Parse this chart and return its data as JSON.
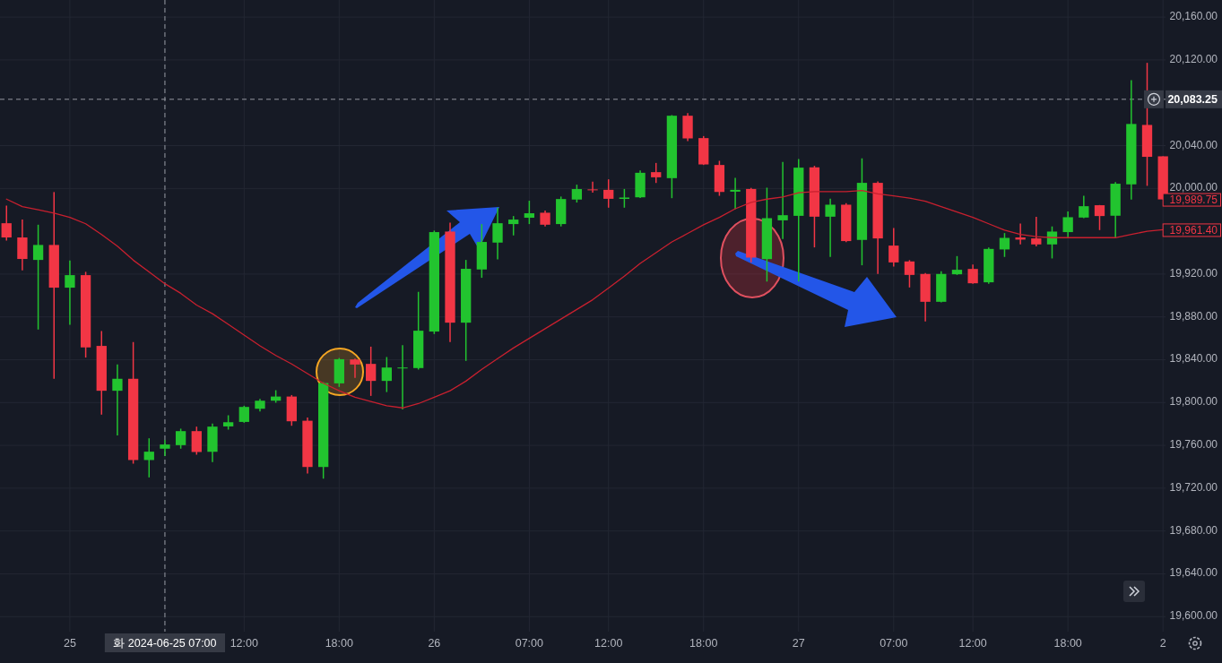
{
  "chart_data": {
    "type": "candlestick",
    "categories": [
      null,
      null,
      null,
      null,
      "25",
      null,
      null,
      null,
      null,
      null,
      "화 2024-06-25 07:00",
      null,
      null,
      null,
      null,
      "12:00",
      null,
      null,
      null,
      null,
      null,
      "18:00",
      null,
      null,
      null,
      null,
      null,
      "26",
      null,
      null,
      null,
      null,
      null,
      "07:00",
      null,
      null,
      null,
      null,
      "12:00",
      null,
      null,
      null,
      null,
      null,
      "18:00",
      null,
      null,
      null,
      null,
      null,
      "27",
      null,
      null,
      null,
      null,
      null,
      "07:00",
      null,
      null,
      null,
      null,
      "12:00",
      null,
      null,
      null,
      null,
      null,
      "18:00",
      null,
      null,
      null,
      null,
      null,
      "2"
    ],
    "series": [
      {
        "type": "line",
        "color": "#c8202f",
        "values": [
          19990,
          19983,
          19980,
          19977,
          19973,
          19967,
          19957,
          19946,
          19933,
          19922,
          19911,
          19902,
          19891,
          19883,
          19873,
          19863,
          19853,
          19844,
          19836,
          19827,
          19818,
          19811,
          19805,
          19801,
          19797,
          19795,
          19799,
          19805,
          19811,
          19820,
          19831,
          19841,
          19851,
          19860,
          19869,
          19878,
          19887,
          19896,
          19907,
          19918,
          19930,
          19940,
          19950,
          19958,
          19966,
          19973,
          19981,
          19987,
          19990,
          19992,
          19996,
          19997,
          19997,
          19997,
          19998,
          19995,
          19993,
          19991,
          19988,
          19983,
          19978,
          19973,
          19967,
          19961,
          19957,
          19955,
          19954,
          19954,
          19954,
          19954,
          19954,
          19957,
          19960,
          19961.4
        ]
      },
      {
        "colors": [
          "#f23645",
          "#f23645",
          "#22c42f",
          "#f23645",
          "#22c42f",
          "#f23645",
          "#f23645",
          "#22c42f",
          "#f23645",
          "#22c42f",
          "#22c42f",
          "#22c42f",
          "#f23645",
          "#22c42f",
          "#22c42f",
          "#22c42f",
          "#22c42f",
          "#22c42f",
          "#f23645",
          "#f23645",
          "#22c42f",
          "#22c42f",
          "#f23645",
          "#f23645",
          "#22c42f",
          "#22c42f",
          "#22c42f",
          "#22c42f",
          "#f23645",
          "#22c42f",
          "#22c42f",
          "#22c42f",
          "#22c42f",
          "#22c42f",
          "#f23645",
          "#22c42f",
          "#22c42f",
          "#f23645",
          "#f23645",
          "#22c42f",
          "#22c42f",
          "#f23645",
          "#22c42f",
          "#f23645",
          "#f23645",
          "#f23645",
          "#22c42f",
          "#f23645",
          "#22c42f",
          "#22c42f",
          "#22c42f",
          "#f23645",
          "#22c42f",
          "#f23645",
          "#22c42f",
          "#f23645",
          "#f23645",
          "#f23645",
          "#f23645",
          "#22c42f",
          "#22c42f",
          "#f23645",
          "#22c42f",
          "#22c42f",
          "#f23645",
          "#f23645",
          "#22c42f",
          "#22c42f",
          "#22c42f",
          "#f23645",
          "#22c42f",
          "#22c42f",
          "#f23645",
          "#f23645"
        ],
        "ohlc": [
          [
            19967.5,
            19984.0,
            19951.4,
            19954.2
          ],
          [
            19954.2,
            19970.9,
            19923.5,
            19934.1
          ],
          [
            19933.2,
            19966.1,
            19868.2,
            19947.2
          ],
          [
            19947.2,
            19996.6,
            19822.2,
            19907.3
          ],
          [
            19907.3,
            19932.7,
            19872.7,
            19919.0
          ],
          [
            19919.0,
            19922.1,
            19842.0,
            19851.5
          ],
          [
            19852.9,
            19866.8,
            19788.7,
            19811.0
          ],
          [
            19811.0,
            19835.6,
            19769.2,
            19822.2
          ],
          [
            19822.2,
            19856.5,
            19742.9,
            19746.3
          ],
          [
            19746.3,
            19766.6,
            19730.1,
            19754.1
          ],
          [
            19756.9,
            19765.0,
            19750.0,
            19760.8
          ],
          [
            19760.2,
            19775.6,
            19756.9,
            19773.3
          ],
          [
            19773.3,
            19777.5,
            19751.3,
            19753.8
          ],
          [
            19754.0,
            19780.3,
            19744.3,
            19777.5
          ],
          [
            19777.7,
            19788.1,
            19774.7,
            19781.6
          ],
          [
            19781.9,
            19797.0,
            19781.1,
            19795.9
          ],
          [
            19794.2,
            19803.4,
            19791.7,
            19801.7
          ],
          [
            19801.7,
            19811.5,
            19799.8,
            19805.6
          ],
          [
            19805.6,
            19807.0,
            19778.3,
            19782.5
          ],
          [
            19783.0,
            19786.1,
            19733.7,
            19739.8
          ],
          [
            19739.8,
            19819.0,
            19728.9,
            19818.2
          ],
          [
            19817.9,
            19841.6,
            19814.6,
            19840.5
          ],
          [
            19840.2,
            19841.0,
            19823.0,
            19835.5
          ],
          [
            19836.1,
            19852.2,
            19806.2,
            19820.2
          ],
          [
            19820.2,
            19842.5,
            19809.8,
            19832.7
          ],
          [
            19832.2,
            19853.6,
            19793.6,
            19832.7
          ],
          [
            19832.2,
            19903.4,
            19830.8,
            19867.1
          ],
          [
            19866.3,
            19960.6,
            19864.0,
            19959.2
          ],
          [
            19959.7,
            19968.1,
            19856.5,
            19874.6
          ],
          [
            19874.6,
            19933.2,
            19838.9,
            19924.9
          ],
          [
            19924.3,
            19966.7,
            19916.5,
            19950.0
          ],
          [
            19949.4,
            19982.1,
            19933.8,
            19967.5
          ],
          [
            19966.7,
            19974.2,
            19956.1,
            19970.9
          ],
          [
            19972.6,
            19988.5,
            19966.7,
            19976.8
          ],
          [
            19977.3,
            19979.3,
            19964.5,
            19966.1
          ],
          [
            19966.7,
            19992.4,
            19964.5,
            19990.1
          ],
          [
            19989.6,
            20003.5,
            19986.8,
            19999.4
          ],
          [
            19999.1,
            20006.3,
            19996.0,
            19998.5
          ],
          [
            19998.7,
            20008.5,
            19982.0,
            19990.3
          ],
          [
            19990.2,
            19999.5,
            19982.0,
            19991.5
          ],
          [
            19991.7,
            20016.8,
            19991.0,
            20014.6
          ],
          [
            20015.2,
            20023.8,
            20005.1,
            20010.4
          ],
          [
            20009.6,
            20068.5,
            19990.9,
            20067.9
          ],
          [
            20067.9,
            20070.4,
            20044.2,
            20046.7
          ],
          [
            20047.0,
            20048.9,
            20021.9,
            20022.4
          ],
          [
            20021.9,
            20025.8,
            19993.1,
            19996.7
          ],
          [
            19997.0,
            20009.9,
            19980.6,
            19998.7
          ],
          [
            19999.5,
            20000.5,
            19930.9,
            19935.4
          ],
          [
            19934.0,
            20000.7,
            19913.0,
            19972.2
          ],
          [
            19970.2,
            20024.7,
            19952.7,
            19975.0
          ],
          [
            19974.4,
            20027.4,
            19913.0,
            20019.4
          ],
          [
            20019.7,
            20021.1,
            19944.9,
            19973.6
          ],
          [
            19973.6,
            19990.4,
            19936.0,
            19984.8
          ],
          [
            19984.8,
            19986.2,
            19949.9,
            19950.8
          ],
          [
            19951.9,
            20028.1,
            19928.2,
            20005.2
          ],
          [
            20005.2,
            20006.6,
            19920.1,
            19953.3
          ],
          [
            19946.6,
            19963.0,
            19927.0,
            19930.9
          ],
          [
            19931.8,
            19933.0,
            19907.5,
            19919.2
          ],
          [
            19920.1,
            19921.0,
            19875.7,
            19894.1
          ],
          [
            19894.1,
            19922.6,
            19893.5,
            19920.1
          ],
          [
            19919.8,
            19936.8,
            19919.2,
            19924.0
          ],
          [
            19924.8,
            19929.0,
            19910.9,
            19911.4
          ],
          [
            19912.3,
            19944.9,
            19910.9,
            19943.5
          ],
          [
            19943.0,
            19958.3,
            19936.0,
            19953.8
          ],
          [
            19954.2,
            19967.3,
            19947.7,
            19952.2
          ],
          [
            19953.3,
            19973.4,
            19945.8,
            19947.7
          ],
          [
            19947.7,
            19964.5,
            19934.6,
            19959.7
          ],
          [
            19959.2,
            19978.4,
            19954.2,
            19973.1
          ],
          [
            19972.8,
            19993.2,
            19972.3,
            19983.4
          ],
          [
            19984.3,
            19984.5,
            19961.1,
            19974.2
          ],
          [
            19974.5,
            20005.8,
            19954.2,
            20004.4
          ],
          [
            20003.8,
            20101.2,
            19989.6,
            20060.2
          ],
          [
            20059.3,
            20117.3,
            20002.4,
            20029.5
          ],
          [
            20030.0,
            20030.0,
            19989.75,
            19989.75
          ]
        ]
      }
    ],
    "ylim": [
      19586,
      20176
    ],
    "yticks": [
      {
        "value": 19600,
        "label": "19,600.00"
      },
      {
        "value": 19640,
        "label": "19,640.00"
      },
      {
        "value": 19680,
        "label": "19,680.00"
      },
      {
        "value": 19720,
        "label": "19,720.00"
      },
      {
        "value": 19760,
        "label": "19,760.00"
      },
      {
        "value": 19800,
        "label": "19,800.00"
      },
      {
        "value": 19840,
        "label": "19,840.00"
      },
      {
        "value": 19880,
        "label": "19,880.00"
      },
      {
        "value": 19920,
        "label": "19,920.00"
      },
      {
        "value": 20000,
        "label": "20,000.00"
      },
      {
        "value": 20040,
        "label": "20,040.00"
      },
      {
        "value": 20120,
        "label": "20,120.00"
      },
      {
        "value": 20160,
        "label": "20,160.00"
      }
    ],
    "grid": true,
    "ref_lines": [
      {
        "axis": "y",
        "value": 20083.25,
        "label": "20,083.25",
        "color": "#9598a1",
        "line_style": "dashed"
      },
      {
        "axis": "x",
        "value": "화 2024-06-25 07:00",
        "color": "#9598a1",
        "line_style": "dashed"
      }
    ],
    "annotations": [
      {
        "text": "19,989.75",
        "x": "2",
        "y": 19989.75
      },
      {
        "text": "19,961.40",
        "x": "2",
        "y": 19961.4
      }
    ]
  }
}
